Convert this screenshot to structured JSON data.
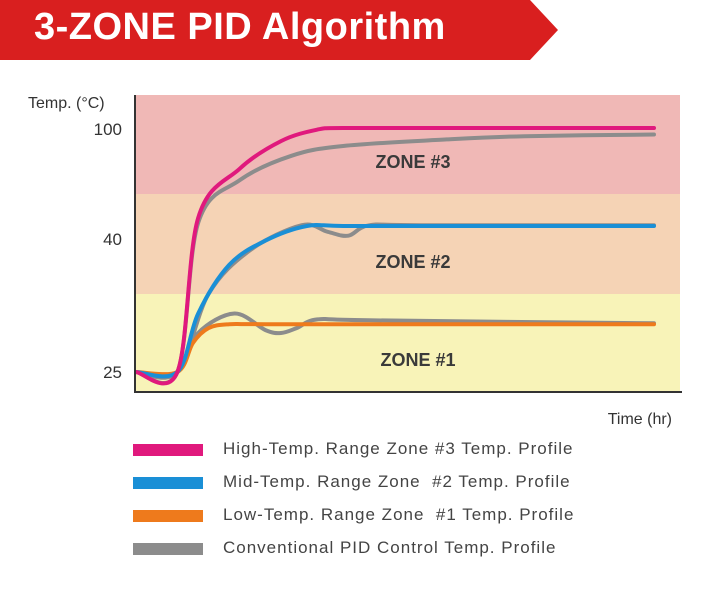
{
  "header": {
    "title": "3-ZONE PID Algorithm",
    "color": "#d91f1f"
  },
  "chart_data": {
    "type": "line",
    "ylabel": "Temp. (°C)",
    "xlabel": "Time (hr)",
    "ytick_labels": [
      "100",
      "40",
      "25"
    ],
    "zones": [
      {
        "label": "ZONE #3",
        "color": "#f0b8b6",
        "lower": 40,
        "upper": 100
      },
      {
        "label": "ZONE #2",
        "color": "#f5d3b5",
        "lower": 33,
        "upper": 40
      },
      {
        "label": "ZONE #1",
        "color": "#f8f3b8",
        "lower": 25,
        "upper": 33
      }
    ],
    "series": [
      {
        "name": "High-Temp. Range Zone #3 Temp. Profile",
        "color": "#e0197d",
        "points": [
          [
            0,
            25
          ],
          [
            8,
            25
          ],
          [
            12,
            45
          ],
          [
            20,
            75
          ],
          [
            28,
            92
          ],
          [
            35,
            99
          ],
          [
            40,
            100
          ],
          [
            60,
            100
          ],
          [
            100,
            100
          ]
        ]
      },
      {
        "name": "Mid-Temp. Range Zone  #2 Temp. Profile",
        "color": "#1a8fd6",
        "points": [
          [
            0,
            25
          ],
          [
            8,
            25
          ],
          [
            12,
            31
          ],
          [
            18,
            36
          ],
          [
            25,
            38.5
          ],
          [
            33,
            40
          ],
          [
            40,
            40
          ],
          [
            60,
            40
          ],
          [
            100,
            40
          ]
        ]
      },
      {
        "name": "Low-Temp. Range Zone  #1 Temp. Profile",
        "color": "#ee7a1c",
        "points": [
          [
            0,
            25
          ],
          [
            8,
            25
          ],
          [
            11,
            28
          ],
          [
            14,
            29.5
          ],
          [
            18,
            29.9
          ],
          [
            25,
            29.9
          ],
          [
            60,
            29.9
          ],
          [
            100,
            29.9
          ]
        ]
      },
      {
        "name": "Conventional PID Control Temp. Profile",
        "color": "#8c8c8c",
        "points": [
          [
            [
              0,
              25
            ],
            [
              8,
              25
            ],
            [
              12,
              42
            ],
            [
              20,
              68
            ],
            [
              30,
              83
            ],
            [
              40,
              89
            ],
            [
              60,
              93
            ],
            [
              75,
              95
            ],
            [
              100,
              96
            ]
          ],
          [
            [
              0,
              25
            ],
            [
              8,
              25
            ],
            [
              14,
              33
            ],
            [
              22,
              37.5
            ],
            [
              32,
              40.5
            ],
            [
              37,
              39.4
            ],
            [
              41,
              39
            ],
            [
              45,
              40.4
            ],
            [
              55,
              40.5
            ],
            [
              100,
              40.5
            ]
          ],
          [
            [
              0,
              25
            ],
            [
              8,
              25
            ],
            [
              12,
              29
            ],
            [
              19,
              31
            ],
            [
              25,
              29.3
            ],
            [
              28,
              29
            ],
            [
              31,
              29.5
            ],
            [
              35,
              30.4
            ],
            [
              45,
              30.3
            ],
            [
              100,
              30
            ]
          ]
        ]
      }
    ]
  },
  "legend": [
    {
      "label": "High-Temp. Range Zone #3 Temp. Profile",
      "color": "#e0197d"
    },
    {
      "label": "Mid-Temp. Range Zone  #2 Temp. Profile",
      "color": "#1a8fd6"
    },
    {
      "label": "Low-Temp. Range Zone  #1 Temp. Profile",
      "color": "#ee7a1c"
    },
    {
      "label": "Conventional PID Control Temp. Profile",
      "color": "#8c8c8c"
    }
  ]
}
